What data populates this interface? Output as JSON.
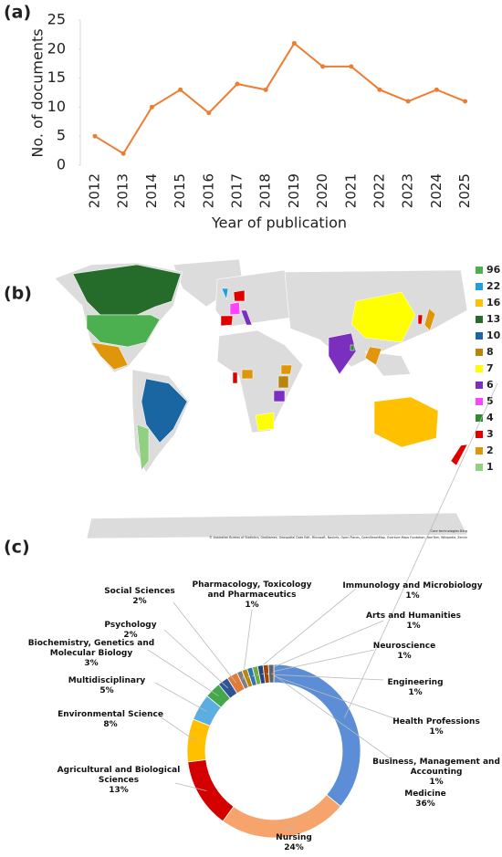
{
  "panel_labels": [
    "(a)",
    "(b)",
    "(c)"
  ],
  "chart_data": [
    {
      "type": "line",
      "xlabel": "Year of publication",
      "ylabel": "No. of  documents",
      "categories": [
        "2012",
        "2013",
        "2014",
        "2015",
        "2016",
        "2017",
        "2018",
        "2019",
        "2020",
        "2021",
        "2022",
        "2023",
        "2024",
        "2025"
      ],
      "values": [
        5,
        2,
        10,
        13,
        9,
        14,
        13,
        21,
        17,
        17,
        13,
        11,
        13,
        11
      ],
      "color": "#ed7d31",
      "ylim": [
        0,
        25
      ],
      "yticks": [
        0,
        5,
        10,
        15,
        20,
        25
      ]
    },
    {
      "type": "map",
      "values": [
        96,
        22,
        16,
        13,
        10,
        8,
        7,
        6,
        5,
        4,
        3,
        2,
        1
      ],
      "colors": [
        "#4cb050",
        "#1ea0dc",
        "#ffc000",
        "#256b2a",
        "#1a66a3",
        "#b8860b",
        "#ffff00",
        "#7b2fbe",
        "#ff44ff",
        "#2e8b2e",
        "#e00000",
        "#e0960a",
        "#90d080"
      ],
      "attribution": "Core technologies Bing",
      "copyright": "© Australian Bureau of Statistics, GeoNames, Geospatial Data Edit, Microsoft, Navinfo, Open Places, OpenStreetMap, Overture Maps Fundation, TomTom, Wikipedia, Zenrin"
    },
    {
      "type": "pie",
      "categories": [
        "Medicine",
        "Nursing",
        "Agricultural and Biological Sciences",
        "Environmental Science",
        "Multidisciplinary",
        "Biochemistry, Genetics and Molecular Biology",
        "Psychology",
        "Social Sciences",
        "Pharmacology, Toxicology and Pharmaceutics",
        "Immunology and Microbiology",
        "Arts and Humanities",
        "Neuroscience",
        "Engineering",
        "Health Professions",
        "Business, Management and Accounting"
      ],
      "values": [
        36,
        24,
        13,
        8,
        5,
        3,
        2,
        2,
        1,
        1,
        1,
        1,
        1,
        1,
        1
      ],
      "value_labels": [
        "36%",
        "24%",
        "13%",
        "8%",
        "5%",
        "3%",
        "2%",
        "2%",
        "1%",
        "1%",
        "1%",
        "1%",
        "1%",
        "1%",
        "1%"
      ],
      "colors": [
        "#5b8ed6",
        "#f6a36c",
        "#d40000",
        "#ffc000",
        "#5aaee0",
        "#44a84a",
        "#2e5597",
        "#e07b39",
        "#7f7f7f",
        "#b8860b",
        "#2e75b6",
        "#70ad47",
        "#264478",
        "#9e480e",
        "#636363"
      ]
    }
  ]
}
